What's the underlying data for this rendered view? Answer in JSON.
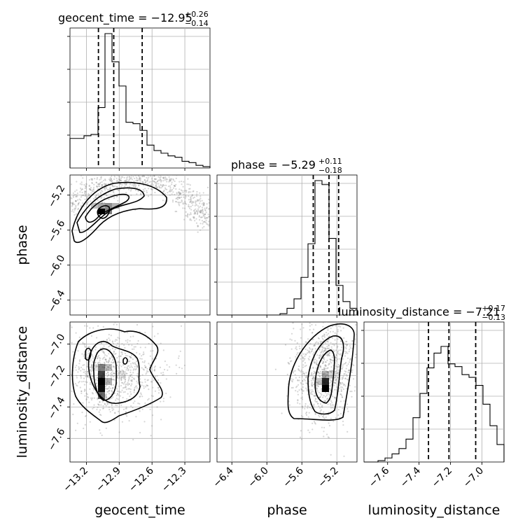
{
  "chart_data": {
    "type": "corner",
    "params": [
      "geocent_time",
      "phase",
      "luminosity_distance"
    ],
    "axis_labels": {
      "geocent_time": "geocent_time",
      "phase": "phase",
      "luminosity_distance": "luminosity_distance"
    },
    "titles": [
      {
        "label": "geocent_time = −12.95",
        "plus": "+0.26",
        "minus": "−0.14"
      },
      {
        "label": "phase = −5.29",
        "plus": "+0.11",
        "minus": "−0.18"
      },
      {
        "label": "luminosity_distance = −7.21",
        "plus": "+0.17",
        "minus": "−0.13"
      }
    ],
    "ranges": {
      "geocent_time": [
        -13.35,
        -12.07
      ],
      "phase": [
        -6.57,
        -4.97
      ],
      "luminosity_distance": [
        -7.75,
        -6.86
      ]
    },
    "ticks": {
      "geocent_time": {
        "values": [
          -13.2,
          -12.9,
          -12.6,
          -12.3
        ],
        "labels": [
          "−13.2",
          "−12.9",
          "−12.6",
          "−12.3"
        ]
      },
      "phase": {
        "values": [
          -6.4,
          -6.0,
          -5.6,
          -5.2
        ],
        "labels": [
          "−6.4",
          "−6.0",
          "−5.6",
          "−5.2"
        ]
      },
      "luminosity_distance": {
        "values": [
          -7.6,
          -7.4,
          -7.2,
          -7.0
        ],
        "labels": [
          "−7.6",
          "−7.4",
          "−7.2",
          "−7.0"
        ]
      }
    },
    "quantiles": {
      "geocent_time": [
        -13.09,
        -12.95,
        -12.69
      ],
      "phase": [
        -5.47,
        -5.29,
        -5.18
      ],
      "luminosity_distance": [
        -7.34,
        -7.21,
        -7.04
      ]
    },
    "histograms": {
      "geocent_time": [
        0.22,
        0.22,
        0.24,
        0.25,
        0.45,
        1.0,
        0.79,
        0.61,
        0.34,
        0.33,
        0.28,
        0.17,
        0.13,
        0.11,
        0.09,
        0.08,
        0.05,
        0.04,
        0.02,
        0.01
      ],
      "phase": [
        0.0,
        0.0,
        0.0,
        0.0,
        0.0,
        0.0,
        0.0,
        0.0,
        0.0,
        0.01,
        0.05,
        0.12,
        0.28,
        0.53,
        1.0,
        0.97,
        0.57,
        0.22,
        0.1,
        0.05
      ],
      "luminosity_distance": [
        0.0,
        0.0,
        0.01,
        0.03,
        0.06,
        0.1,
        0.17,
        0.33,
        0.51,
        0.7,
        0.81,
        0.86,
        0.73,
        0.71,
        0.65,
        0.63,
        0.57,
        0.43,
        0.27,
        0.13
      ]
    },
    "grid": true,
    "density_color": "#000000",
    "contour_color": "#000000",
    "quantile_line_style": "dashed"
  }
}
